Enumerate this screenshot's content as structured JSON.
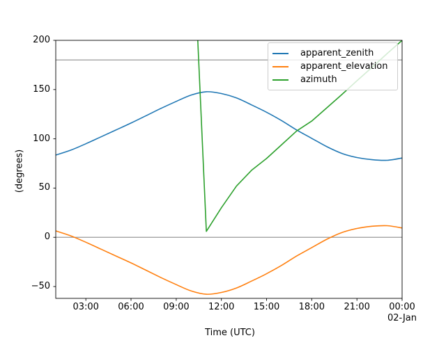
{
  "figure": {
    "ylabel": "(degrees)",
    "xlabel": "Time (UTC)"
  },
  "legend": {
    "position": "upper right",
    "entries": [
      {
        "label": "apparent_zenith",
        "color": "#1f77b4"
      },
      {
        "label": "apparent_elevation",
        "color": "#ff7f0e"
      },
      {
        "label": "azimuth",
        "color": "#2ca02c"
      }
    ]
  },
  "chart_data": {
    "type": "line",
    "title": "",
    "xlabel": "Time (UTC)",
    "ylabel": "(degrees)",
    "x_axis": "time of day UTC, 01:00 Jan-01 through 00:00 02-Jan",
    "xlim_hours": [
      1,
      24
    ],
    "ylim": [
      -62,
      200
    ],
    "grid": false,
    "legend_position": "upper right",
    "xtick_hours": [
      3,
      6,
      9,
      12,
      15,
      18,
      21,
      24
    ],
    "xtick_labels": [
      "03:00",
      "06:00",
      "09:00",
      "12:00",
      "15:00",
      "18:00",
      "21:00",
      "00:00"
    ],
    "xtick_date_label": "02-Jan",
    "ytick_values": [
      200,
      150,
      100,
      50,
      0,
      -50
    ],
    "ytick_labels": [
      "200",
      "150",
      "100",
      "50",
      "0",
      "−50"
    ],
    "hlines": {
      "values": [
        180,
        0
      ],
      "color": "#a9a9a9"
    },
    "series": [
      {
        "name": "apparent_zenith",
        "color": "#1f77b4",
        "interp": "smooth",
        "points": [
          [
            1,
            83.5
          ],
          [
            2,
            88.5
          ],
          [
            3,
            95
          ],
          [
            4,
            102
          ],
          [
            5,
            109
          ],
          [
            6,
            116
          ],
          [
            7,
            123.5
          ],
          [
            8,
            131
          ],
          [
            9,
            138
          ],
          [
            10,
            144.5
          ],
          [
            11,
            147.8
          ],
          [
            12,
            146
          ],
          [
            13,
            141.5
          ],
          [
            14,
            134.5
          ],
          [
            15,
            127
          ],
          [
            16,
            118.5
          ],
          [
            17,
            109
          ],
          [
            18,
            100.5
          ],
          [
            19,
            92
          ],
          [
            20,
            85.2
          ],
          [
            21,
            81
          ],
          [
            22,
            78.8
          ],
          [
            23,
            78.2
          ],
          [
            24,
            80.5
          ]
        ]
      },
      {
        "name": "apparent_elevation",
        "color": "#ff7f0e",
        "interp": "smooth",
        "points": [
          [
            1,
            6.5
          ],
          [
            2,
            1.5
          ],
          [
            3,
            -5
          ],
          [
            4,
            -12
          ],
          [
            5,
            -19
          ],
          [
            6,
            -26
          ],
          [
            7,
            -33.5
          ],
          [
            8,
            -41
          ],
          [
            9,
            -48
          ],
          [
            10,
            -54.5
          ],
          [
            11,
            -57.8
          ],
          [
            12,
            -56
          ],
          [
            13,
            -51.5
          ],
          [
            14,
            -44.5
          ],
          [
            15,
            -37
          ],
          [
            16,
            -28.5
          ],
          [
            17,
            -19
          ],
          [
            18,
            -10.5
          ],
          [
            19,
            -2
          ],
          [
            20,
            4.8
          ],
          [
            21,
            9
          ],
          [
            22,
            11.2
          ],
          [
            23,
            11.8
          ],
          [
            24,
            9.5
          ]
        ]
      },
      {
        "name": "azimuth",
        "color": "#2ca02c",
        "interp": "linear",
        "note": "wraps through 360/0 near 10:45; off-scale (>200, clipped) before 10:26",
        "points": [
          [
            10.43,
            200
          ],
          [
            11,
            6
          ],
          [
            12,
            30
          ],
          [
            13,
            52
          ],
          [
            14,
            68
          ],
          [
            15,
            80
          ],
          [
            16,
            94
          ],
          [
            17,
            108
          ],
          [
            18,
            118
          ],
          [
            19,
            131.5
          ],
          [
            20,
            145
          ],
          [
            21,
            159
          ],
          [
            22,
            172.5
          ],
          [
            23,
            186.5
          ],
          [
            24,
            200
          ]
        ]
      }
    ]
  }
}
